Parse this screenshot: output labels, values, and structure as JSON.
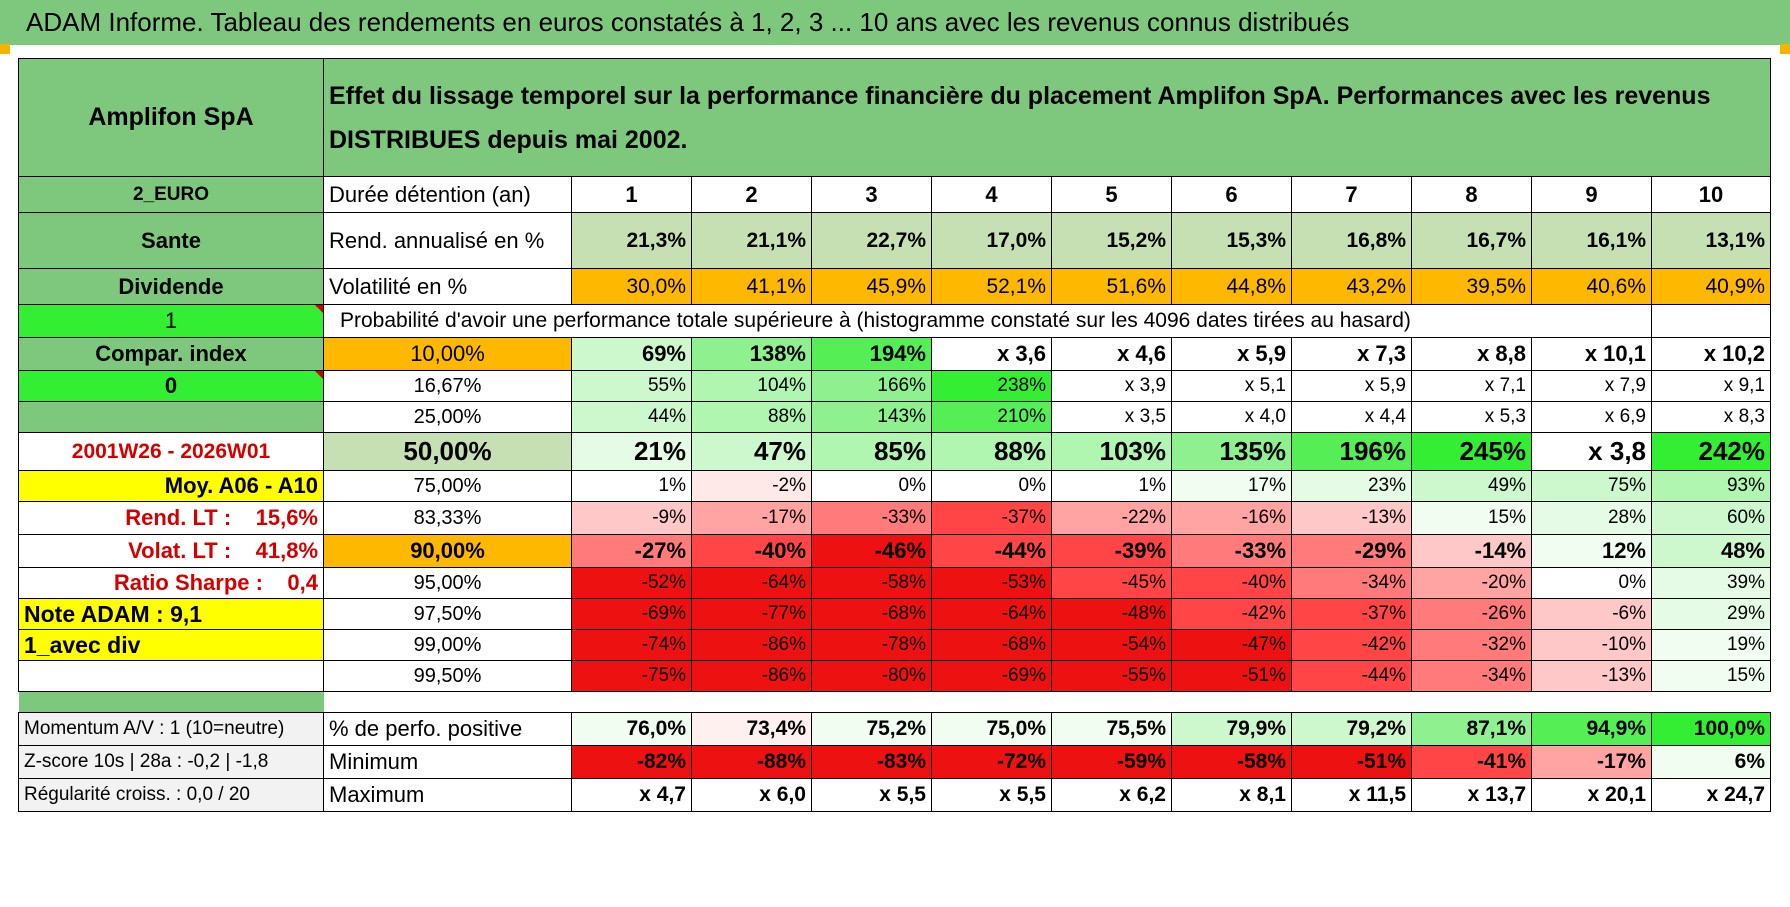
{
  "title": "ADAM Informe. Tableau des rendements en euros constatés à 1, 2, 3 ... 10 ans avec les revenus connus distribués",
  "header": {
    "company": "Amplifon SpA",
    "description": "Effet du lissage temporel sur la performance financière du placement Amplifon SpA. Performances avec les revenus DISTRIBUES depuis mai 2002."
  },
  "years": [
    "1",
    "2",
    "3",
    "4",
    "5",
    "6",
    "7",
    "8",
    "9",
    "10"
  ],
  "rows": {
    "duration": {
      "left": "2_EURO",
      "label": "Durée détention (an)"
    },
    "rend": {
      "left": "Sante",
      "label": "Rend. annualisé en %",
      "values": [
        "21,3%",
        "21,1%",
        "22,7%",
        "17,0%",
        "15,2%",
        "15,3%",
        "16,8%",
        "16,7%",
        "16,1%",
        "13,1%"
      ]
    },
    "vol": {
      "left": "Dividende",
      "label": "Volatilité en %",
      "values": [
        "30,0%",
        "41,1%",
        "45,9%",
        "52,1%",
        "51,6%",
        "44,8%",
        "43,2%",
        "39,5%",
        "40,6%",
        "40,9%"
      ]
    },
    "prob_header": {
      "left": "1",
      "label": "Probabilité d'avoir une performance totale supérieure à (histogramme constaté sur les 4096 dates tirées au hasard)"
    }
  },
  "quantiles": [
    {
      "left": "Compar. index",
      "q": "10,00%",
      "values": [
        "69%",
        "138%",
        "194%",
        "x 3,6",
        "x 4,6",
        "x 5,9",
        "x 7,3",
        "x 8,8",
        "x 10,1",
        "x 10,2"
      ]
    },
    {
      "left": "0",
      "q": "16,67%",
      "values": [
        "55%",
        "104%",
        "166%",
        "238%",
        "x 3,9",
        "x 5,1",
        "x 5,9",
        "x 7,1",
        "x 7,9",
        "x 9,1"
      ]
    },
    {
      "left": "",
      "q": "25,00%",
      "values": [
        "44%",
        "88%",
        "143%",
        "210%",
        "x 3,5",
        "x 4,0",
        "x 4,4",
        "x 5,3",
        "x 6,9",
        "x 8,3"
      ]
    },
    {
      "left": "2001W26 - 2026W01",
      "q": "50,00%",
      "values": [
        "21%",
        "47%",
        "85%",
        "88%",
        "103%",
        "135%",
        "196%",
        "245%",
        "x 3,8",
        "242%"
      ]
    },
    {
      "left": "Moy. A06 - A10",
      "q": "75,00%",
      "values": [
        "1%",
        "-2%",
        "0%",
        "0%",
        "1%",
        "17%",
        "23%",
        "49%",
        "75%",
        "93%"
      ]
    },
    {
      "left": "Rend. LT :    15,6%",
      "q": "83,33%",
      "values": [
        "-9%",
        "-17%",
        "-33%",
        "-37%",
        "-22%",
        "-16%",
        "-13%",
        "15%",
        "28%",
        "60%"
      ]
    },
    {
      "left": "Volat. LT :    41,8%",
      "q": "90,00%",
      "values": [
        "-27%",
        "-40%",
        "-46%",
        "-44%",
        "-39%",
        "-33%",
        "-29%",
        "-14%",
        "12%",
        "48%"
      ]
    },
    {
      "left": "Ratio Sharpe :    0,4",
      "q": "95,00%",
      "values": [
        "-52%",
        "-64%",
        "-58%",
        "-53%",
        "-45%",
        "-40%",
        "-34%",
        "-20%",
        "0%",
        "39%"
      ]
    },
    {
      "left": "Note ADAM : 9,1",
      "q": "97,50%",
      "values": [
        "-69%",
        "-77%",
        "-68%",
        "-64%",
        "-48%",
        "-42%",
        "-37%",
        "-26%",
        "-6%",
        "29%"
      ]
    },
    {
      "left": "1_avec div",
      "q": "99,00%",
      "values": [
        "-74%",
        "-86%",
        "-78%",
        "-68%",
        "-54%",
        "-47%",
        "-42%",
        "-32%",
        "-10%",
        "19%"
      ]
    },
    {
      "left": "",
      "q": "99,50%",
      "values": [
        "-75%",
        "-86%",
        "-80%",
        "-69%",
        "-55%",
        "-51%",
        "-44%",
        "-34%",
        "-13%",
        "15%"
      ]
    }
  ],
  "bottom": [
    {
      "left": "Momentum A/V : 1 (10=neutre)",
      "label": "% de perfo. positive",
      "values": [
        "76,0%",
        "73,4%",
        "75,2%",
        "75,0%",
        "75,5%",
        "79,9%",
        "79,2%",
        "87,1%",
        "94,9%",
        "100,0%"
      ]
    },
    {
      "left": "Z-score 10s | 28a : -0,2 | -1,8",
      "label": "Minimum",
      "values": [
        "-82%",
        "-88%",
        "-83%",
        "-72%",
        "-59%",
        "-58%",
        "-51%",
        "-41%",
        "-17%",
        "6%"
      ]
    },
    {
      "left": "Régularité croiss. : 0,0 / 20",
      "label": "Maximum",
      "values": [
        "x 4,7",
        "x 6,0",
        "x 5,5",
        "x 5,5",
        "x 6,2",
        "x 8,1",
        "x 11,5",
        "x 13,7",
        "x 20,1",
        "x 24,7"
      ]
    }
  ],
  "colors": {
    "header_green": "#7ec87e",
    "bright_green": "#33ee33",
    "orange": "#ffb800",
    "yellow": "#ffff00",
    "light_green": "#c6e0b4",
    "deep_red": "#ee1111",
    "label_red": "#d40000"
  }
}
